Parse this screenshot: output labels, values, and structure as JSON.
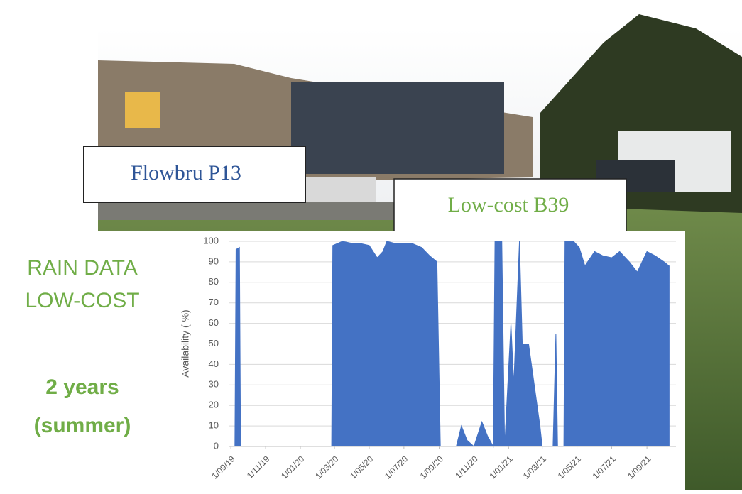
{
  "labels": {
    "station_a": "Flowbru P13",
    "station_b": "Low-cost B39",
    "side_line1": "RAIN DATA",
    "side_line2": "LOW-COST",
    "side_line3": "2 years",
    "side_line4": "(summer)"
  },
  "chart_data": {
    "type": "area",
    "ylabel": "Availability ( %)",
    "color": "#4472c4",
    "grid": true,
    "x": [
      "2019-09-01",
      "2019-09-08",
      "2019-09-10",
      "2019-09-16",
      "2019-09-18",
      "2019-10-01",
      "2019-11-01",
      "2019-12-01",
      "2020-01-01",
      "2020-02-01",
      "2020-02-25",
      "2020-02-27",
      "2020-03-15",
      "2020-04-01",
      "2020-04-15",
      "2020-05-01",
      "2020-05-15",
      "2020-05-25",
      "2020-06-01",
      "2020-06-15",
      "2020-07-01",
      "2020-07-15",
      "2020-08-01",
      "2020-08-15",
      "2020-08-28",
      "2020-09-03",
      "2020-10-01",
      "2020-10-10",
      "2020-10-20",
      "2020-11-01",
      "2020-11-15",
      "2020-11-25",
      "2020-12-05",
      "2020-12-08",
      "2020-12-20",
      "2020-12-25",
      "2021-01-05",
      "2021-01-10",
      "2021-01-20",
      "2021-01-25",
      "2021-02-05",
      "2021-02-15",
      "2021-02-25",
      "2021-03-01",
      "2021-03-20",
      "2021-03-25",
      "2021-03-28",
      "2021-04-08",
      "2021-04-10",
      "2021-04-25",
      "2021-05-05",
      "2021-05-15",
      "2021-06-01",
      "2021-06-15",
      "2021-07-01",
      "2021-07-15",
      "2021-08-01",
      "2021-08-15",
      "2021-09-01",
      "2021-09-15",
      "2021-10-01",
      "2021-10-10"
    ],
    "values": [
      0,
      0,
      96,
      97,
      0,
      0,
      0,
      0,
      0,
      0,
      0,
      98,
      100,
      99,
      99,
      98,
      92,
      95,
      100,
      99,
      99,
      99,
      97,
      93,
      90,
      0,
      0,
      10,
      3,
      0,
      12,
      5,
      0,
      100,
      100,
      0,
      60,
      30,
      100,
      50,
      50,
      30,
      10,
      0,
      0,
      55,
      0,
      0,
      100,
      100,
      97,
      88,
      95,
      93,
      92,
      95,
      90,
      85,
      95,
      93,
      90,
      88
    ],
    "xlim": [
      "2019-08-28",
      "2021-10-22"
    ],
    "xticks": [
      {
        "value": "2019-09-01",
        "label": "1/09/19"
      },
      {
        "value": "2019-11-01",
        "label": "1/11/19"
      },
      {
        "value": "2020-01-01",
        "label": "1/01/20"
      },
      {
        "value": "2020-03-01",
        "label": "1/03/20"
      },
      {
        "value": "2020-05-01",
        "label": "1/05/20"
      },
      {
        "value": "2020-07-01",
        "label": "1/07/20"
      },
      {
        "value": "2020-09-01",
        "label": "1/09/20"
      },
      {
        "value": "2020-11-01",
        "label": "1/11/20"
      },
      {
        "value": "2021-01-01",
        "label": "1/01/21"
      },
      {
        "value": "2021-03-01",
        "label": "1/03/21"
      },
      {
        "value": "2021-05-01",
        "label": "1/05/21"
      },
      {
        "value": "2021-07-01",
        "label": "1/07/21"
      },
      {
        "value": "2021-09-01",
        "label": "1/09/21"
      }
    ],
    "ylim": [
      0,
      100
    ],
    "yticks": [
      0,
      10,
      20,
      30,
      40,
      50,
      60,
      70,
      80,
      90,
      100
    ]
  }
}
